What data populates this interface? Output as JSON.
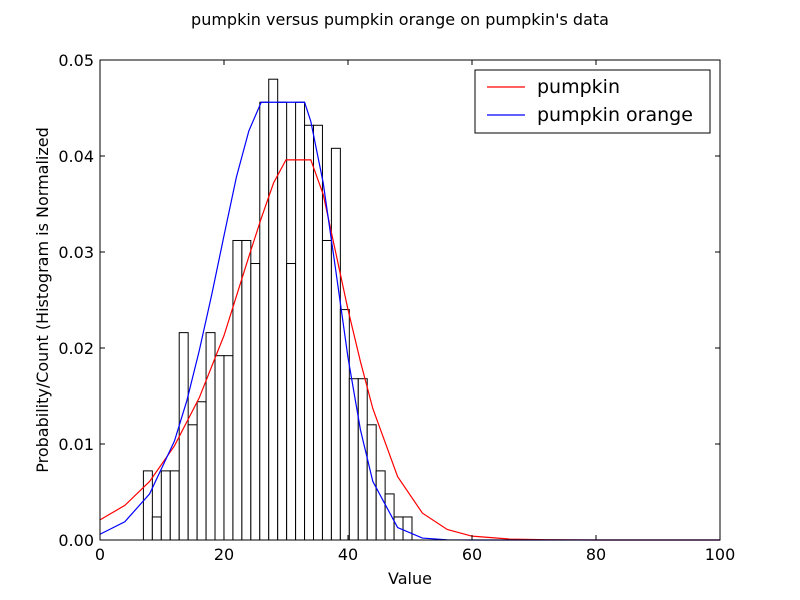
{
  "chart_data": {
    "type": "bar",
    "title": "pumpkin versus pumpkin orange on pumpkin's data",
    "xlabel": "Value",
    "ylabel": "Probability/Count (Histogram is Normalized",
    "xlim": [
      0,
      100
    ],
    "ylim": [
      0,
      0.05
    ],
    "xticks": [
      "0",
      "20",
      "40",
      "60",
      "80",
      "100"
    ],
    "xtick_values": [
      0,
      20,
      40,
      60,
      80,
      100
    ],
    "yticks": [
      "0.00",
      "0.01",
      "0.02",
      "0.03",
      "0.04",
      "0.05"
    ],
    "ytick_values": [
      0,
      0.01,
      0.02,
      0.03,
      0.04,
      0.05
    ],
    "grid": false,
    "legend_position": "top-right",
    "histogram": {
      "bin_start": 7,
      "bin_width": 1.444,
      "values": [
        0.0072,
        0.0024,
        0.0072,
        0.0072,
        0.0216,
        0.012,
        0.0144,
        0.0216,
        0.0192,
        0.0192,
        0.0312,
        0.0312,
        0.0288,
        0.0456,
        0.048,
        0.0456,
        0.0288,
        0.0456,
        0.0432,
        0.0432,
        0.0312,
        0.0408,
        0.024,
        0.0168,
        0.0168,
        0.012,
        0.0072,
        0.0048,
        0.0024,
        0.0024
      ],
      "edge_color": "#000000",
      "face_color": "#ffffff"
    },
    "series": [
      {
        "name": "pumpkin",
        "color": "#ff0000",
        "x": [
          0,
          4,
          8,
          12,
          16,
          20,
          22,
          24,
          26,
          28,
          30,
          34,
          36,
          38,
          40,
          42,
          44,
          48,
          52,
          56,
          60,
          66,
          72,
          80,
          100
        ],
        "y": [
          0.0021,
          0.0036,
          0.0061,
          0.0098,
          0.0148,
          0.0213,
          0.0254,
          0.0295,
          0.0335,
          0.0372,
          0.0396,
          0.0396,
          0.036,
          0.03,
          0.024,
          0.0186,
          0.0137,
          0.0066,
          0.0028,
          0.0011,
          0.0004,
          0.0001,
          3e-05,
          0,
          0
        ]
      },
      {
        "name": "pumpkin orange",
        "color": "#0000ff",
        "x": [
          0,
          4,
          8,
          12,
          14,
          16,
          18,
          20,
          22,
          24,
          26,
          33,
          34,
          36,
          38,
          40,
          42,
          44,
          48,
          52,
          56,
          60,
          70,
          80,
          100
        ],
        "y": [
          0.0006,
          0.0019,
          0.0048,
          0.0103,
          0.0145,
          0.0197,
          0.0255,
          0.0317,
          0.0378,
          0.0426,
          0.0456,
          0.0456,
          0.0436,
          0.0372,
          0.0282,
          0.019,
          0.0115,
          0.0061,
          0.0013,
          0.0002,
          2e-05,
          0,
          0,
          0,
          0
        ]
      }
    ]
  }
}
